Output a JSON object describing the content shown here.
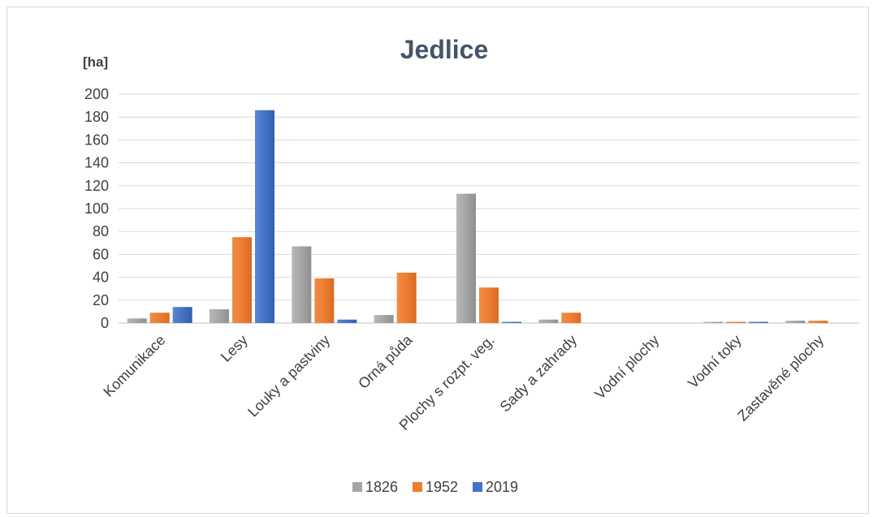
{
  "chart_data": {
    "type": "bar",
    "title": "Jedlice",
    "ylabel": "[ha]",
    "xlabel": "",
    "ylim": [
      0,
      200
    ],
    "ytick_step": 20,
    "grid": true,
    "legend_position": "bottom",
    "categories": [
      "Komunikace",
      "Lesy",
      "Louky a pastviny",
      "Orná půda",
      "Plochy s rozpt. veg.",
      "Sady a zahrady",
      "Vodní plochy",
      "Vodní toky",
      "Zastavěné plochy"
    ],
    "series": [
      {
        "name": "1826",
        "color": "#a5a5a5",
        "values": [
          4,
          12,
          67,
          7,
          113,
          3,
          0,
          1,
          2
        ]
      },
      {
        "name": "1952",
        "color": "#ed7d31",
        "values": [
          9,
          75,
          39,
          44,
          31,
          9,
          0,
          1,
          2
        ]
      },
      {
        "name": "2019",
        "color": "#4472c4",
        "values": [
          14,
          186,
          3,
          0,
          1,
          0,
          0,
          1,
          0
        ]
      }
    ]
  }
}
